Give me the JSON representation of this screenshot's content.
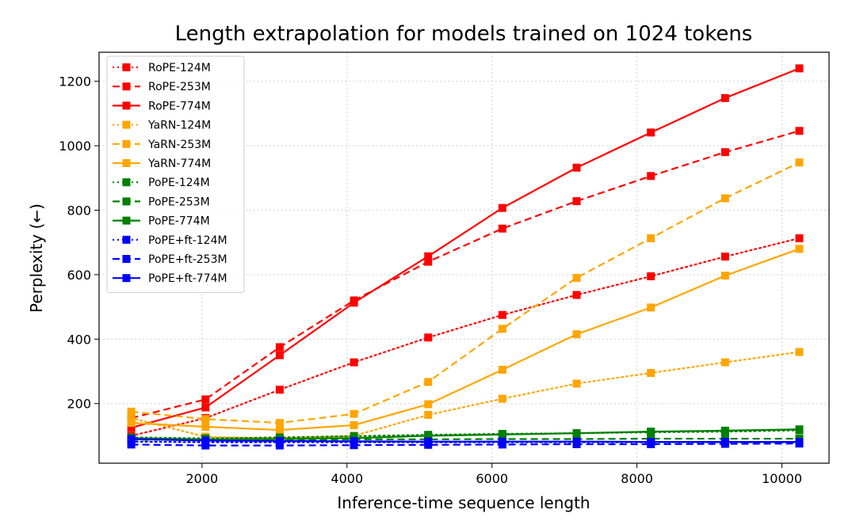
{
  "chart_data": {
    "type": "line",
    "title": "Length extrapolation for models trained on 1024 tokens",
    "xlabel": "Inference-time sequence length",
    "ylabel": "Perplexity (←)",
    "xlim": [
      580,
      10650
    ],
    "ylim": [
      15,
      1290
    ],
    "xticks": [
      2000,
      4000,
      6000,
      8000,
      10000
    ],
    "yticks": [
      200,
      400,
      600,
      800,
      1000,
      1200
    ],
    "grid": true,
    "legend_position": "top-left",
    "x": [
      1024,
      2048,
      3072,
      4096,
      5120,
      6144,
      7168,
      8192,
      9216,
      10240
    ],
    "series": [
      {
        "name": "RoPE-124M",
        "color": "#ff0000",
        "style": "dotted",
        "values": [
          100,
          155,
          243,
          328,
          405,
          475,
          537,
          595,
          656,
          713
        ]
      },
      {
        "name": "RoPE-253M",
        "color": "#ff0000",
        "style": "dashed",
        "values": [
          155,
          213,
          375,
          520,
          640,
          743,
          828,
          906,
          980,
          1046
        ]
      },
      {
        "name": "RoPE-774M",
        "color": "#ff0000",
        "style": "solid",
        "values": [
          125,
          188,
          350,
          513,
          657,
          807,
          932,
          1041,
          1148,
          1240
        ]
      },
      {
        "name": "YaRN-124M",
        "color": "#ffa500",
        "style": "dotted",
        "values": [
          155,
          97,
          92,
          100,
          165,
          215,
          262,
          295,
          328,
          360
        ]
      },
      {
        "name": "YaRN-253M",
        "color": "#ffa500",
        "style": "dashed",
        "values": [
          175,
          152,
          140,
          168,
          267,
          432,
          590,
          713,
          837,
          948
        ]
      },
      {
        "name": "YaRN-774M",
        "color": "#ffa500",
        "style": "solid",
        "values": [
          140,
          128,
          118,
          133,
          198,
          305,
          415,
          498,
          597,
          680
        ]
      },
      {
        "name": "PoPE-124M",
        "color": "#008000",
        "style": "dotted",
        "values": [
          95,
          92,
          95,
          99,
          103,
          106,
          108,
          111,
          113,
          117
        ]
      },
      {
        "name": "PoPE-253M",
        "color": "#008000",
        "style": "dashed",
        "values": [
          88,
          87,
          88,
          89,
          89,
          90,
          90,
          91,
          91,
          91
        ]
      },
      {
        "name": "PoPE-774M",
        "color": "#008000",
        "style": "solid",
        "values": [
          92,
          89,
          90,
          93,
          100,
          104,
          108,
          113,
          116,
          120
        ]
      },
      {
        "name": "PoPE+ft-124M",
        "color": "#0000ff",
        "style": "dotted",
        "values": [
          82,
          80,
          80,
          80,
          80,
          80,
          80,
          80,
          80,
          80
        ]
      },
      {
        "name": "PoPE+ft-253M",
        "color": "#0000ff",
        "style": "dashed",
        "values": [
          73,
          70,
          70,
          71,
          72,
          73,
          74,
          74,
          75,
          76
        ]
      },
      {
        "name": "PoPE+ft-774M",
        "color": "#0000ff",
        "style": "solid",
        "values": [
          90,
          85,
          84,
          83,
          82,
          82,
          82,
          81,
          81,
          81
        ]
      }
    ]
  }
}
